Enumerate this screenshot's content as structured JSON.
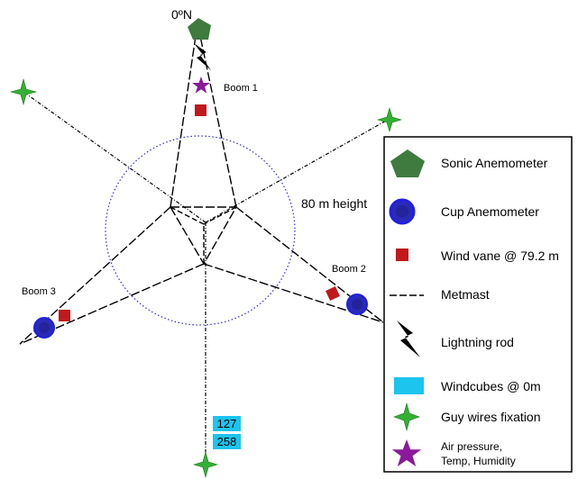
{
  "labels": {
    "north": "0ºN",
    "height": "80 m height",
    "boom1": "Boom 1",
    "boom2": "Boom 2",
    "boom3": "Boom 3"
  },
  "windcubes": [
    "127",
    "258"
  ],
  "legend": {
    "sonic": "Sonic Anemometer",
    "cup": "Cup Anemometer",
    "vane": "Wind vane @ 79.2 m",
    "metmast": "Metmast",
    "lightning": "Lightning rod",
    "windcubes": "Windcubes @ 0m",
    "guy": "Guy wires fixation",
    "air_line1": "Air pressure,",
    "air_line2": "Temp, Humidity"
  },
  "colors": {
    "sonic": "#3f7a3f",
    "cup_fill": "#2a2ab8",
    "cup_ring": "#1f1fe0",
    "vane": "#c0191c",
    "windcube": "#1cc4ee",
    "guy": "#33b033",
    "air": "#8a1a9a",
    "circle": "#2b2bd8"
  },
  "icons": {
    "sonic": "pentagon-icon",
    "cup": "circle-icon",
    "vane": "square-icon",
    "lightning": "lightning-bolt-icon",
    "windcube": "rectangle-icon",
    "guy": "four-point-star-icon",
    "air": "five-point-star-icon"
  }
}
